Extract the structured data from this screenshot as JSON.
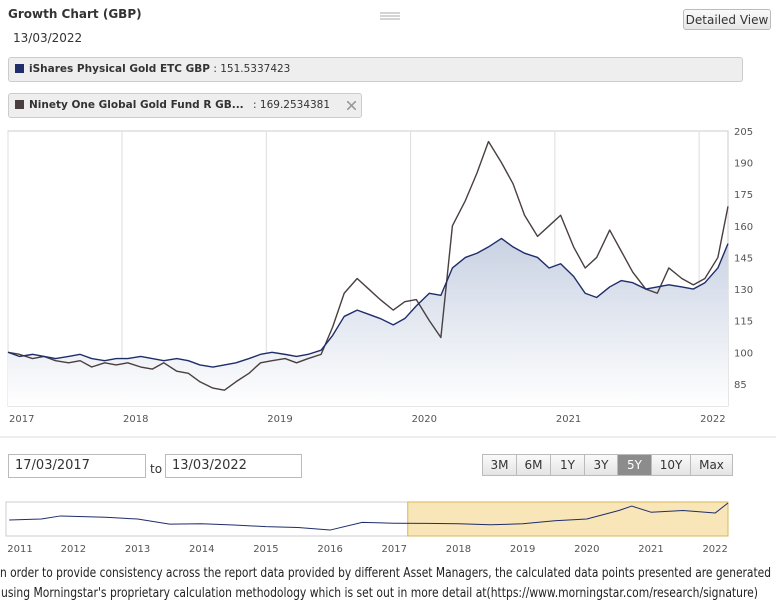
{
  "header": {
    "title": "Growth Chart (GBP)",
    "date": "13/03/2022",
    "detailed_view": "Detailed View"
  },
  "legend": {
    "separator": ":"
  },
  "chart_data": [
    {
      "type": "line",
      "x": [
        2017.21,
        2017.29,
        2017.38,
        2017.46,
        2017.54,
        2017.63,
        2017.71,
        2017.79,
        2017.88,
        2017.96,
        2018.04,
        2018.13,
        2018.21,
        2018.29,
        2018.38,
        2018.46,
        2018.54,
        2018.63,
        2018.71,
        2018.79,
        2018.88,
        2018.96,
        2019.04,
        2019.13,
        2019.21,
        2019.29,
        2019.38,
        2019.46,
        2019.54,
        2019.63,
        2019.71,
        2019.79,
        2019.88,
        2019.96,
        2020.04,
        2020.13,
        2020.21,
        2020.29,
        2020.38,
        2020.46,
        2020.54,
        2020.63,
        2020.71,
        2020.79,
        2020.88,
        2020.96,
        2021.04,
        2021.13,
        2021.21,
        2021.29,
        2021.38,
        2021.46,
        2021.54,
        2021.63,
        2021.71,
        2021.79,
        2021.88,
        2021.96,
        2022.04,
        2022.13,
        2022.2
      ],
      "series": [
        {
          "name": "iShares Physical Gold ETC GBP",
          "color": "#1f2d6b",
          "area": true,
          "values": [
            100,
            98,
            99,
            98,
            97,
            98,
            99,
            97,
            96,
            97,
            97,
            98,
            97,
            96,
            97,
            96,
            94,
            93,
            94,
            95,
            97,
            99,
            100,
            99,
            98,
            99,
            101,
            108,
            117,
            120,
            118,
            116,
            113,
            116,
            122,
            128,
            127,
            140,
            145,
            147,
            150,
            154,
            150,
            147,
            145,
            140,
            142,
            136,
            128,
            126,
            131,
            134,
            133,
            130,
            131,
            132,
            131,
            130,
            133,
            140,
            151.5337423
          ]
        },
        {
          "name": "Ninety One Global Gold Fund R GB...",
          "color": "#4a3f3f",
          "removable": true,
          "values": [
            100,
            99,
            97,
            98,
            96,
            95,
            96,
            93,
            95,
            94,
            95,
            93,
            92,
            95,
            91,
            90,
            86,
            83,
            82,
            86,
            90,
            95,
            96,
            97,
            95,
            97,
            99,
            112,
            128,
            135,
            130,
            125,
            120,
            124,
            125,
            115,
            107,
            160,
            172,
            185,
            200,
            190,
            180,
            165,
            155,
            160,
            165,
            150,
            140,
            145,
            158,
            148,
            138,
            130,
            128,
            140,
            135,
            132,
            135,
            145,
            169.2534381
          ]
        }
      ],
      "xlim": [
        2017.21,
        2022.2
      ],
      "xticks": [
        {
          "value": 2017.21,
          "label": "2017"
        },
        2018,
        2019,
        2020,
        2021,
        2022
      ],
      "ylim": [
        74.5,
        205
      ],
      "yticks": [
        85,
        100,
        115,
        130,
        145,
        160,
        175,
        190,
        205
      ],
      "grid": true
    },
    {
      "type": "line",
      "x": [
        2011,
        2011.5,
        2011.8,
        2012.5,
        2013,
        2013.5,
        2014,
        2014.5,
        2015,
        2015.5,
        2016,
        2016.5,
        2017,
        2017.5,
        2018,
        2018.5,
        2019,
        2019.5,
        2020,
        2020.5,
        2020.7,
        2021,
        2021.5,
        2022,
        2022.2
      ],
      "series": [
        {
          "color": "#1f2d6b",
          "values": [
            94,
            100,
            118,
            110,
            100,
            70,
            72,
            65,
            55,
            50,
            35,
            80,
            75,
            74,
            72,
            66,
            72,
            90,
            100,
            150,
            176,
            140,
            150,
            135,
            194
          ]
        }
      ],
      "xlim": [
        2010.95,
        2022.2
      ],
      "xticks": [
        2011,
        2012,
        2013,
        2014,
        2015,
        2016,
        2017,
        2018,
        2019,
        2020,
        2021,
        2022
      ],
      "ylim": [
        0,
        200
      ],
      "selection": [
        2017.21,
        2022.2
      ]
    }
  ],
  "range": {
    "from": "17/03/2017",
    "to_label": "to",
    "to": "13/03/2022",
    "buttons": [
      "3M",
      "6M",
      "1Y",
      "3Y",
      "5Y",
      "10Y",
      "Max"
    ],
    "active": 4
  },
  "disclaimer": [
    "n order to provide consistency across the report data provided by different Asset Managers, the calculated data points presented are generated",
    "using Morningstar's proprietary calculation methodology which is set out in more detail at(https://www.morningstar.com/research/signature)"
  ]
}
